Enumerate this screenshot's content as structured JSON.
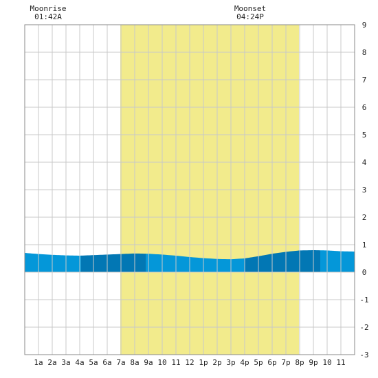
{
  "chart_data": {
    "type": "area",
    "title": "",
    "xlabel": "",
    "ylabel": "",
    "x_ticks": [
      "1a",
      "2a",
      "3a",
      "4a",
      "5a",
      "6a",
      "7a",
      "8a",
      "9a",
      "10",
      "11",
      "12",
      "1p",
      "2p",
      "3p",
      "4p",
      "5p",
      "6p",
      "7p",
      "8p",
      "9p",
      "10",
      "11"
    ],
    "y_ticks": [
      -3,
      -2,
      -1,
      0,
      1,
      2,
      3,
      4,
      5,
      6,
      7,
      8,
      9
    ],
    "xlim": [
      0,
      24
    ],
    "ylim": [
      -3,
      9
    ],
    "grid": true,
    "daylight": {
      "start": 6.95,
      "end": 19.95,
      "color": "#f2eb8c"
    },
    "annotations": [
      {
        "title": "Moonrise",
        "time": "01:42A",
        "hour": 1.7
      },
      {
        "title": "Moonset",
        "time": "04:24P",
        "hour": 16.4
      }
    ],
    "series": [
      {
        "x": [
          0,
          1,
          2,
          3,
          4,
          5,
          6,
          7,
          8,
          9,
          10,
          11,
          12,
          13,
          14,
          15,
          16,
          17,
          18,
          19,
          20,
          21,
          22,
          23,
          24
        ],
        "values": [
          0.7,
          0.66,
          0.63,
          0.61,
          0.6,
          0.62,
          0.64,
          0.66,
          0.68,
          0.67,
          0.64,
          0.6,
          0.55,
          0.51,
          0.48,
          0.47,
          0.5,
          0.58,
          0.67,
          0.74,
          0.79,
          0.8,
          0.79,
          0.76,
          0.75
        ]
      }
    ],
    "band_colors": {
      "light": "#0497d9",
      "dark": "#0277b4"
    },
    "band_breaks": [
      4.1,
      8.8,
      16.0,
      21.5
    ]
  }
}
